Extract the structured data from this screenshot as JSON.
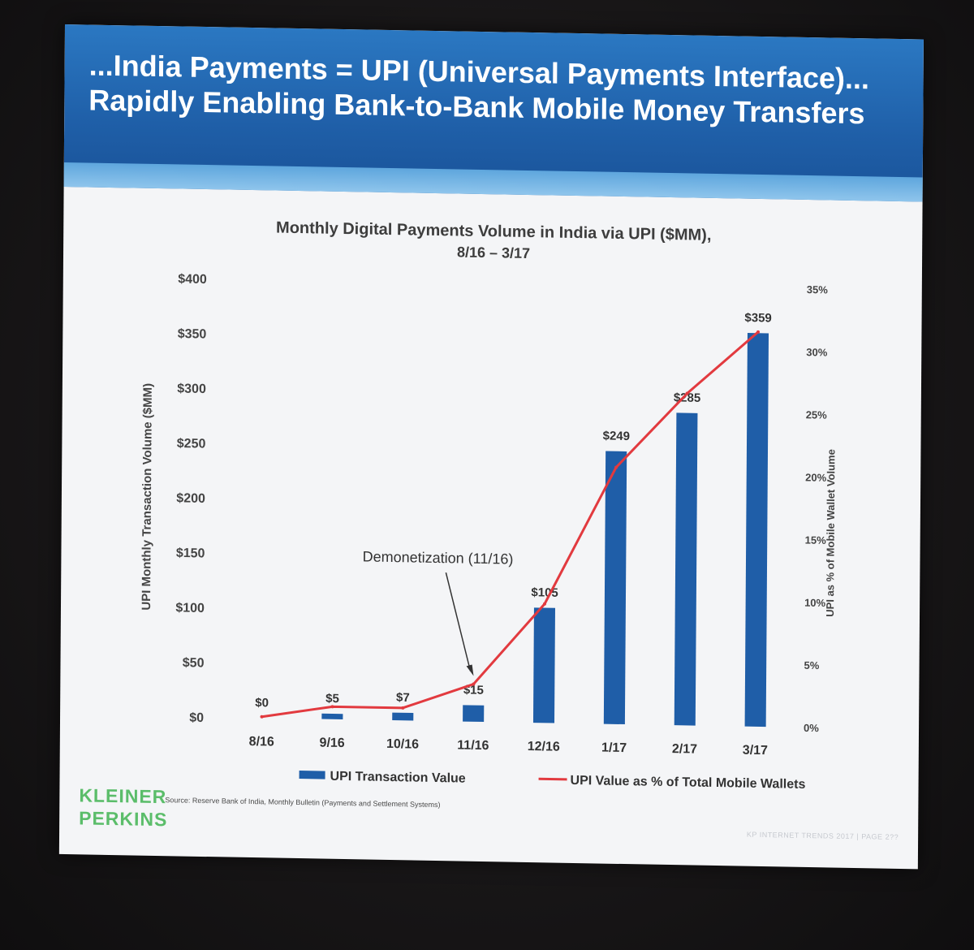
{
  "slide": {
    "title_line1": "...India Payments = UPI (Universal Payments Interface)...",
    "title_line2": "Rapidly Enabling Bank-to-Bank Mobile Money Transfers",
    "logo_line1": "KLEINER",
    "logo_line2": "PERKINS",
    "source": "Source: Reserve Bank of India, Monthly Bulletin (Payments and Settlement Systems)",
    "footer": "KP INTERNET TRENDS 2017 | PAGE 2??"
  },
  "colors": {
    "bar": "#1f5ea8",
    "line": "#e23a3f",
    "title_band": "#1f5fa8",
    "logo": "#5bbd6a"
  },
  "chart_data": {
    "type": "bar",
    "title": "Monthly Digital Payments Volume in India via UPI ($MM),",
    "subtitle": "8/16 – 3/17",
    "categories": [
      "8/16",
      "9/16",
      "10/16",
      "11/16",
      "12/16",
      "1/17",
      "2/17",
      "3/17"
    ],
    "series": [
      {
        "name": "UPI Transaction Value",
        "type": "bar",
        "axis": "left",
        "values": [
          0,
          5,
          7,
          15,
          105,
          249,
          285,
          359
        ],
        "labels": [
          "$0",
          "$5",
          "$7",
          "$15",
          "$105",
          "$249",
          "$285",
          "$359"
        ]
      },
      {
        "name": "UPI Value as % of Total Mobile Wallets",
        "type": "line",
        "axis": "right",
        "values": [
          0.1,
          1.0,
          1.0,
          3.0,
          9.5,
          20.5,
          26.5,
          31.5
        ]
      }
    ],
    "ylabel": "UPI Monthly Transaction Volume ($MM)",
    "y2label": "UPI as % of Mobile Wallet Volume",
    "ylim": [
      0,
      400
    ],
    "yticks": [
      "$0",
      "$50",
      "$100",
      "$150",
      "$200",
      "$250",
      "$300",
      "$350",
      "$400"
    ],
    "y2lim": [
      0,
      35
    ],
    "y2ticks": [
      "0%",
      "5%",
      "10%",
      "15%",
      "20%",
      "25%",
      "30%",
      "35%"
    ],
    "annotation": {
      "text": "Demonetization (11/16)",
      "category": "11/16"
    },
    "legend": "bottom",
    "grid": false
  }
}
